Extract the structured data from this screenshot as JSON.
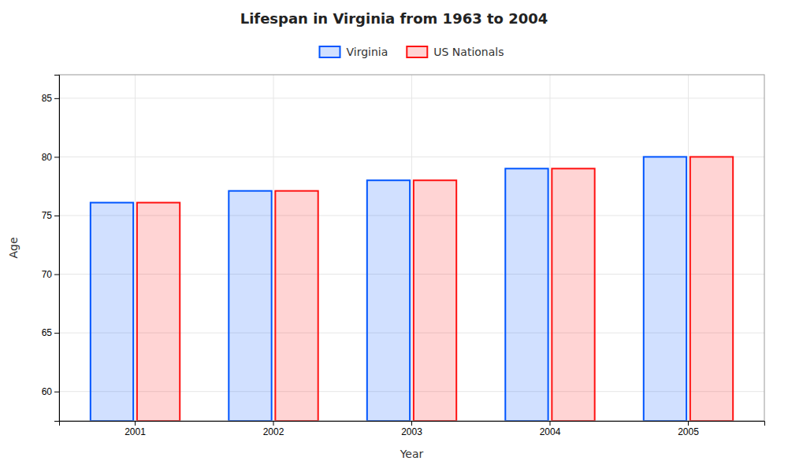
{
  "chart_data": {
    "type": "bar",
    "title": "Lifespan in Virginia from 1963 to 2004",
    "x_label": "Year",
    "y_label": "Age",
    "categories": [
      "2001",
      "2002",
      "2003",
      "2004",
      "2005"
    ],
    "series": [
      {
        "name": "Virginia",
        "color": "#0055ff",
        "values": [
          76.1,
          77.1,
          78.0,
          79.0,
          80.0
        ]
      },
      {
        "name": "US Nationals",
        "color": "#ff1111",
        "values": [
          76.1,
          77.1,
          78.0,
          79.0,
          80.0
        ]
      }
    ],
    "ylim": [
      57.5,
      87
    ],
    "yticks": [
      60,
      65,
      70,
      75,
      80,
      85
    ],
    "grid": true,
    "legend": "top"
  }
}
